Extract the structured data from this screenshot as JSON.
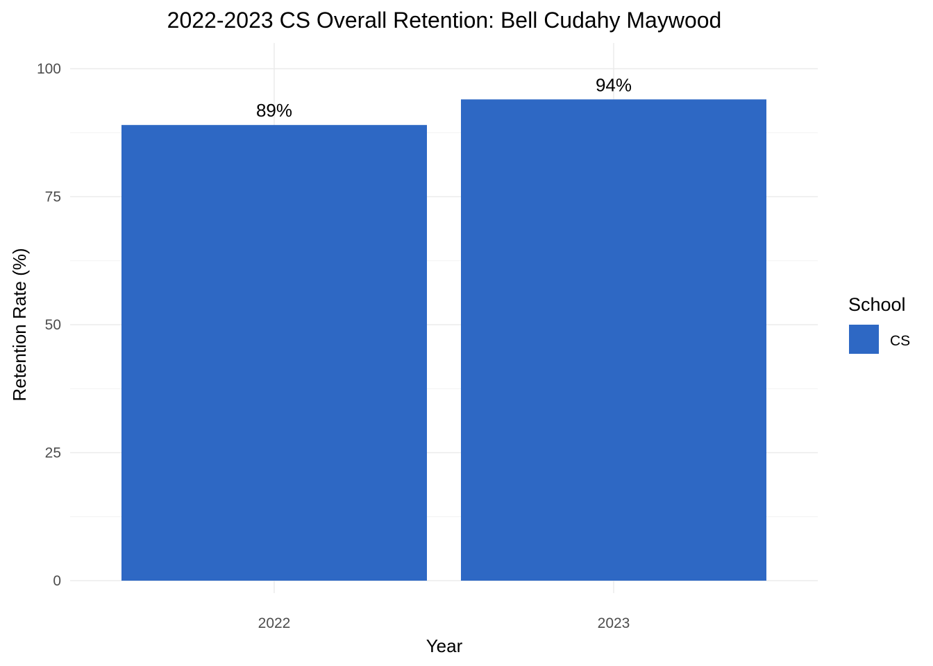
{
  "chart_data": {
    "type": "bar",
    "title": "2022-2023 CS Overall Retention: Bell Cudahy Maywood",
    "xlabel": "Year",
    "ylabel": "Retention Rate (%)",
    "categories": [
      "2022",
      "2023"
    ],
    "series": [
      {
        "name": "CS",
        "values": [
          89,
          94
        ],
        "labels": [
          "89%",
          "94%"
        ],
        "color": "#2e68c4"
      }
    ],
    "ylim": [
      0,
      100
    ],
    "yticks": [
      0,
      25,
      50,
      75,
      100
    ],
    "grid": true,
    "legend": {
      "title": "School",
      "placement": "right"
    }
  }
}
